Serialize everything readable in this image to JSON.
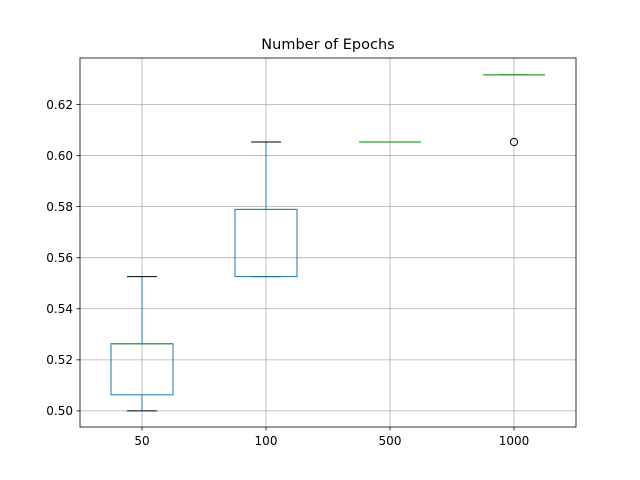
{
  "chart_data": {
    "type": "box",
    "title": "Number of Epochs",
    "xlabel": "",
    "ylabel": "",
    "categories": [
      "50",
      "100",
      "500",
      "1000"
    ],
    "boxes": [
      {
        "category": "50",
        "whisker_low": 0.5,
        "q1": 0.5063,
        "median": 0.5263,
        "q3": 0.5263,
        "whisker_high": 0.5526,
        "fliers": []
      },
      {
        "category": "100",
        "whisker_low": 0.5526,
        "q1": 0.5526,
        "median": 0.5789,
        "q3": 0.5789,
        "whisker_high": 0.6053,
        "fliers": []
      },
      {
        "category": "500",
        "whisker_low": 0.6053,
        "q1": 0.6053,
        "median": 0.6053,
        "q3": 0.6053,
        "whisker_high": 0.6053,
        "fliers": []
      },
      {
        "category": "1000",
        "whisker_low": 0.6316,
        "q1": 0.6316,
        "median": 0.6316,
        "q3": 0.6316,
        "whisker_high": 0.6316,
        "fliers": [
          0.6053
        ]
      }
    ],
    "ylim": [
      0.4937,
      0.6382
    ],
    "yticks": [
      0.5,
      0.52,
      0.54,
      0.56,
      0.58,
      0.6,
      0.62
    ],
    "ytick_labels": [
      "0.50",
      "0.52",
      "0.54",
      "0.56",
      "0.58",
      "0.60",
      "0.62"
    ],
    "grid": true,
    "colors": {
      "box": "#1f77b4",
      "median": "#2ca02c",
      "whisker": "#000000",
      "grid": "#b0b0b0",
      "flier": "#000000"
    }
  }
}
